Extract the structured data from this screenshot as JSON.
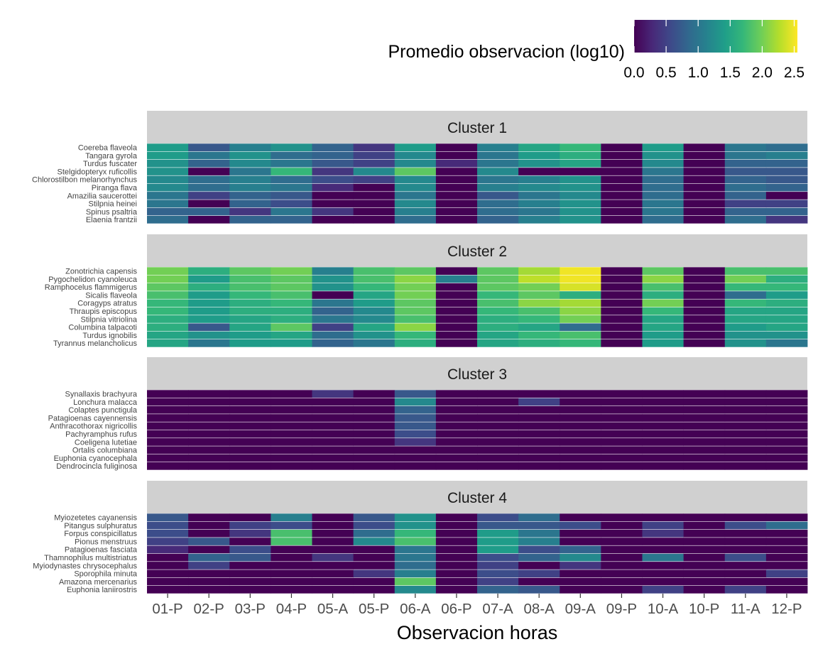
{
  "chart_data": {
    "type": "heatmap",
    "xlabel": "Observacion horas",
    "legend": {
      "title": "Promedio  observacion (log10)",
      "ticks": [
        "0.0",
        "0.5",
        "1.0",
        "1.5",
        "2.0",
        "2.5"
      ],
      "tick_values": [
        0,
        0.5,
        1,
        1.5,
        2,
        2.5
      ],
      "range": [
        0,
        2.55
      ],
      "placement": "top-right",
      "palette": [
        "#440154",
        "#482878",
        "#3e4989",
        "#31688e",
        "#26828e",
        "#1f9e89",
        "#35b779",
        "#6ece58",
        "#b5de2b",
        "#fde725"
      ]
    },
    "columns": [
      "01-P",
      "02-P",
      "03-P",
      "04-P",
      "05-A",
      "05-P",
      "06-A",
      "06-P",
      "07-A",
      "08-A",
      "09-A",
      "09-P",
      "10-A",
      "10-P",
      "11-A",
      "12-P"
    ],
    "panels": [
      {
        "title": "Cluster 1",
        "rows": [
          {
            "species": "Coereba flaveola",
            "values": [
              1.4,
              0.7,
              1.1,
              1.3,
              0.8,
              0.4,
              1.4,
              0,
              1.1,
              1.5,
              1.7,
              0,
              1.4,
              0,
              1.0,
              0.9
            ]
          },
          {
            "species": "Tangara gyrola",
            "values": [
              1.4,
              1.0,
              1.3,
              0.9,
              0.8,
              0.5,
              1.2,
              0,
              1.0,
              1.4,
              1.6,
              0,
              1.3,
              0,
              1.0,
              1.1
            ]
          },
          {
            "species": "Turdus fuscater",
            "values": [
              1.3,
              0.8,
              1.2,
              1.0,
              0.7,
              0.5,
              1.2,
              0.3,
              1.0,
              1.3,
              1.5,
              0,
              1.2,
              0,
              0.8,
              0.8
            ]
          },
          {
            "species": "Stelgidopteryx ruficollis",
            "values": [
              1.3,
              0,
              1.0,
              1.7,
              0.4,
              1.2,
              1.9,
              0,
              1.2,
              0,
              0,
              0,
              1.0,
              0,
              0.7,
              0.7
            ]
          },
          {
            "species": "Chlorostilbon melanorhynchus",
            "values": [
              1.2,
              0.9,
              1.1,
              0.9,
              0.6,
              0.5,
              1.2,
              0,
              1.0,
              1.1,
              1.3,
              0,
              0.9,
              0,
              0.8,
              0.7
            ]
          },
          {
            "species": "Piranga flava",
            "values": [
              1.2,
              0.9,
              1.1,
              1.0,
              0.3,
              0,
              1.2,
              0,
              1.1,
              1.2,
              1.3,
              0,
              0.9,
              0,
              0.9,
              0.8
            ]
          },
          {
            "species": "Amazilia saucerottei",
            "values": [
              1.0,
              0.5,
              0.8,
              0.7,
              0,
              0,
              1.0,
              0,
              0.7,
              1.0,
              1.2,
              0,
              0.9,
              0,
              0.8,
              0
            ]
          },
          {
            "species": "Stilpnia heinei",
            "values": [
              1.0,
              0,
              0.8,
              0.6,
              0,
              0,
              1.2,
              0,
              0.9,
              1.1,
              1.3,
              0,
              1.0,
              0,
              0.5,
              0.5
            ]
          },
          {
            "species": "Spinus psaltria",
            "values": [
              0.8,
              0.8,
              0.4,
              1.0,
              0.4,
              0,
              1.1,
              0,
              0.9,
              1.0,
              1.3,
              0,
              1.0,
              0,
              0.8,
              0.8
            ]
          },
          {
            "species": "Elaenia frantzii",
            "values": [
              0.9,
              0,
              0.8,
              0.8,
              0,
              0,
              0.9,
              0,
              0.8,
              1.1,
              1.3,
              0,
              0.9,
              0,
              0.9,
              0.4
            ]
          }
        ]
      },
      {
        "title": "Cluster 2",
        "rows": [
          {
            "species": "Zonotrichia capensis",
            "values": [
              2.0,
              1.6,
              1.9,
              2.0,
              1.1,
              1.8,
              1.9,
              0,
              1.9,
              2.2,
              2.5,
              0,
              1.9,
              0,
              1.8,
              1.8
            ]
          },
          {
            "species": "Pygochelidon cyanoleuca",
            "values": [
              2.0,
              1.4,
              1.8,
              1.9,
              1.3,
              1.8,
              2.1,
              1.1,
              1.9,
              2.3,
              2.5,
              0,
              2.1,
              0,
              2.0,
              1.6
            ]
          },
          {
            "species": "Ramphocelus flammigerus",
            "values": [
              1.9,
              1.6,
              1.8,
              1.9,
              1.3,
              1.7,
              2.0,
              0,
              1.9,
              2.0,
              2.4,
              0,
              1.8,
              0,
              1.7,
              1.7
            ]
          },
          {
            "species": "Sicalis flaveola",
            "values": [
              1.8,
              1.4,
              1.7,
              1.8,
              0,
              1.5,
              2.0,
              0,
              1.7,
              1.9,
              1.6,
              0,
              1.6,
              0,
              0.9,
              1.4
            ]
          },
          {
            "species": "Coragyps atratus",
            "values": [
              1.7,
              1.4,
              1.6,
              1.7,
              1.0,
              1.4,
              1.9,
              0,
              1.8,
              2.1,
              2.2,
              0,
              2.0,
              0,
              1.7,
              1.6
            ]
          },
          {
            "species": "Thraupis episcopus",
            "values": [
              1.7,
              1.4,
              1.6,
              1.6,
              0.8,
              1.2,
              1.9,
              0,
              1.7,
              1.8,
              2.1,
              0,
              1.7,
              0,
              1.5,
              1.5
            ]
          },
          {
            "species": "Stilpnia vitriolina",
            "values": [
              1.6,
              1.4,
              1.5,
              1.6,
              1.0,
              1.2,
              1.8,
              0,
              1.6,
              1.7,
              2.0,
              0,
              1.5,
              0,
              1.5,
              1.5
            ]
          },
          {
            "species": "Columbina talpacoti",
            "values": [
              1.6,
              0.7,
              1.5,
              1.9,
              0.5,
              1.5,
              2.1,
              0,
              1.6,
              1.5,
              0.9,
              0,
              1.5,
              0,
              1.4,
              1.5
            ]
          },
          {
            "species": "Turdus ignobilis",
            "values": [
              1.5,
              1.3,
              1.4,
              1.5,
              0.9,
              1.3,
              1.7,
              0,
              1.5,
              1.7,
              1.8,
              0,
              1.4,
              0,
              1.3,
              1.3
            ]
          },
          {
            "species": "Tyrannus melancholicus",
            "values": [
              1.5,
              1.0,
              1.4,
              1.4,
              0.8,
              1.0,
              1.6,
              0,
              1.5,
              1.6,
              1.7,
              0,
              1.4,
              0,
              1.3,
              1.0
            ]
          }
        ]
      },
      {
        "title": "Cluster 3",
        "rows": [
          {
            "species": "Synallaxis brachyura",
            "values": [
              0,
              0,
              0,
              0,
              0.4,
              0,
              0.7,
              0,
              0,
              0,
              0,
              0,
              0,
              0,
              0,
              0
            ]
          },
          {
            "species": "Lonchura malacca",
            "values": [
              0,
              0,
              0,
              0,
              0,
              0,
              1.2,
              0,
              0,
              0.5,
              0,
              0,
              0,
              0,
              0,
              0
            ]
          },
          {
            "species": "Colaptes punctigula",
            "values": [
              0,
              0,
              0,
              0,
              0,
              0,
              0.8,
              0,
              0,
              0,
              0,
              0,
              0,
              0,
              0,
              0
            ]
          },
          {
            "species": "Patagioenas cayennensis",
            "values": [
              0,
              0,
              0,
              0,
              0,
              0,
              0.7,
              0,
              0,
              0,
              0,
              0,
              0,
              0,
              0,
              0
            ]
          },
          {
            "species": "Anthracothorax nigricollis",
            "values": [
              0,
              0,
              0,
              0,
              0,
              0,
              0.7,
              0,
              0,
              0,
              0,
              0,
              0,
              0,
              0,
              0
            ]
          },
          {
            "species": "Pachyramphus rufus",
            "values": [
              0,
              0,
              0,
              0,
              0,
              0,
              0.6,
              0,
              0,
              0,
              0,
              0,
              0,
              0,
              0,
              0
            ]
          },
          {
            "species": "Coeligena lutetiae",
            "values": [
              0,
              0,
              0,
              0,
              0,
              0,
              0.4,
              0,
              0,
              0,
              0,
              0,
              0,
              0,
              0,
              0
            ]
          },
          {
            "species": "Ortalis columbiana",
            "values": [
              0,
              0,
              0,
              0,
              0,
              0,
              0,
              0,
              0,
              0,
              0,
              0,
              0,
              0,
              0,
              0
            ]
          },
          {
            "species": "Euphonia cyanocephala",
            "values": [
              0,
              0,
              0,
              0,
              0,
              0,
              0,
              0,
              0,
              0,
              0,
              0,
              0,
              0,
              0,
              0
            ]
          },
          {
            "species": "Dendrocincla fuliginosa",
            "values": [
              0,
              0,
              0,
              0,
              0,
              0,
              0,
              0,
              0,
              0,
              0,
              0,
              0,
              0,
              0,
              0
            ]
          }
        ]
      },
      {
        "title": "Cluster 4",
        "rows": [
          {
            "species": "Myiozetetes cayanensis",
            "values": [
              0.7,
              0,
              0,
              1.1,
              0,
              0.7,
              1.3,
              0,
              0.6,
              0.9,
              0,
              0,
              0,
              0,
              0,
              0
            ]
          },
          {
            "species": "Pitangus sulphuratus",
            "values": [
              0.6,
              0,
              0.5,
              0.6,
              0,
              0.6,
              1.3,
              0,
              0.7,
              0.7,
              0.6,
              0,
              0.5,
              0,
              0.6,
              0.9
            ]
          },
          {
            "species": "Forpus conspicillatus",
            "values": [
              0.6,
              0,
              0.4,
              1.8,
              0,
              0.9,
              1.7,
              0,
              1.4,
              1.0,
              0,
              0,
              0.4,
              0,
              0,
              0
            ]
          },
          {
            "species": "Pionus menstruus",
            "values": [
              0.5,
              0.7,
              0,
              1.8,
              0,
              1.2,
              1.8,
              0,
              1.4,
              1.1,
              0,
              0,
              0,
              0,
              0,
              0
            ]
          },
          {
            "species": "Patagioenas fasciata",
            "values": [
              0.3,
              0,
              0.6,
              0,
              0,
              0,
              1.0,
              0,
              1.4,
              0.6,
              0.8,
              0,
              0,
              0,
              0,
              0
            ]
          },
          {
            "species": "Thamnophilus multistriatus",
            "values": [
              0,
              0.8,
              0.7,
              0,
              0.4,
              0,
              1.0,
              0,
              0.6,
              0.8,
              1.2,
              0,
              1.0,
              0,
              0.6,
              0
            ]
          },
          {
            "species": "Myiodynastes chrysocephalus",
            "values": [
              0,
              0.5,
              0,
              0,
              0,
              0,
              0.9,
              0,
              0.5,
              0,
              0.4,
              0,
              0,
              0,
              0,
              0
            ]
          },
          {
            "species": "Sporophila minuta",
            "values": [
              0,
              0,
              0,
              0,
              0,
              0.4,
              1.1,
              0,
              0.6,
              0.5,
              0,
              0,
              0,
              0,
              0,
              0.5
            ]
          },
          {
            "species": "Amazona mercenarius",
            "values": [
              0,
              0,
              0,
              0,
              0,
              0,
              1.9,
              0,
              0.5,
              0,
              0,
              0,
              0,
              0,
              0,
              0
            ]
          },
          {
            "species": "Euphonia laniirostris",
            "values": [
              0,
              0,
              0,
              0,
              0,
              0,
              1.2,
              0,
              0.8,
              0.7,
              0,
              0,
              0.5,
              0,
              0.5,
              0
            ]
          }
        ]
      }
    ]
  }
}
